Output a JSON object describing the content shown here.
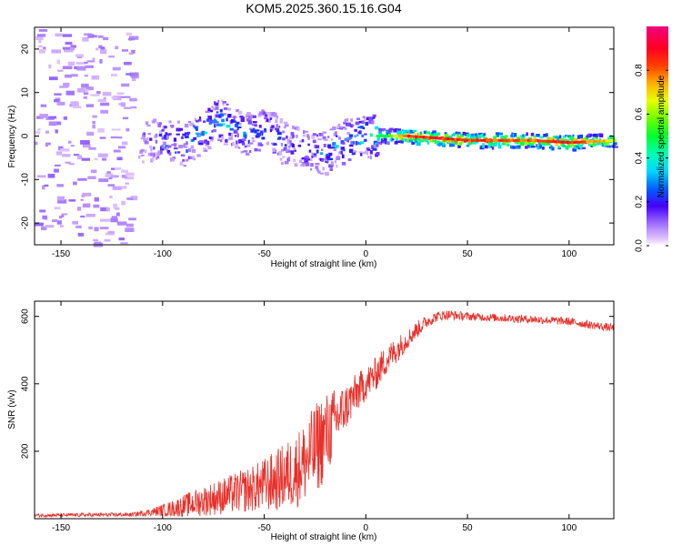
{
  "title": "KOM5.2025.360.15.16.G04",
  "chart_data": [
    {
      "type": "heatmap",
      "xlabel": "Height of straight line (km)",
      "ylabel": "Frequency (Hz)",
      "xlim": [
        -163,
        122
      ],
      "ylim": [
        -25,
        25
      ],
      "xticks": [
        -150,
        -100,
        -50,
        0,
        50,
        100
      ],
      "yticks": [
        -20,
        -10,
        0,
        10,
        20
      ],
      "colorbar": {
        "label": "Normalized spectral amplitude",
        "range": [
          0,
          1
        ],
        "ticks": [
          0.0,
          0.2,
          0.4,
          0.6,
          0.8
        ],
        "tick_labels": [
          "0.0",
          "0.2",
          "0.4",
          "0.6",
          "0.8"
        ]
      },
      "ridge": {
        "x": [
          -112,
          -100,
          -90,
          -80,
          -75,
          -70,
          -60,
          -50,
          -40,
          -30,
          -20,
          -10,
          0,
          10,
          20,
          50,
          80,
          100,
          122
        ],
        "freq": [
          -1,
          -1,
          -2,
          1,
          4,
          3,
          0,
          2,
          -2,
          -3,
          -4,
          -1,
          0,
          0,
          0,
          -1,
          -1,
          -1.5,
          -1
        ],
        "amplitude": [
          0.15,
          0.3,
          0.3,
          0.35,
          0.4,
          0.35,
          0.3,
          0.3,
          0.25,
          0.25,
          0.3,
          0.35,
          0.45,
          0.55,
          0.95,
          0.9,
          0.85,
          0.95,
          0.7
        ]
      },
      "noise_region": {
        "x_range": [
          -163,
          -115
        ],
        "amplitude": 0.05
      }
    },
    {
      "type": "line",
      "xlabel": "Height of straight line (km)",
      "ylabel": "SNR (v/v)",
      "xlim": [
        -163,
        122
      ],
      "ylim": [
        0,
        645
      ],
      "xticks": [
        -150,
        -100,
        -50,
        0,
        50,
        100
      ],
      "yticks": [
        200,
        400,
        600
      ],
      "color": "#e8302a",
      "envelope": {
        "x": [
          -163,
          -115,
          -105,
          -95,
          -85,
          -75,
          -65,
          -55,
          -45,
          -35,
          -28,
          -22,
          -18,
          -14,
          -10,
          -5,
          0,
          5,
          10,
          15,
          20,
          25,
          30,
          35,
          40,
          50,
          60,
          80,
          100,
          110,
          122
        ],
        "mean": [
          10,
          12,
          20,
          30,
          45,
          60,
          75,
          90,
          110,
          140,
          180,
          230,
          260,
          300,
          330,
          370,
          400,
          430,
          470,
          500,
          530,
          560,
          585,
          600,
          605,
          600,
          597,
          592,
          585,
          575,
          565
        ],
        "amplitude": [
          5,
          6,
          12,
          25,
          40,
          50,
          60,
          70,
          90,
          110,
          130,
          140,
          120,
          90,
          70,
          60,
          50,
          50,
          45,
          40,
          30,
          25,
          20,
          15,
          15,
          12,
          12,
          12,
          12,
          12,
          12
        ]
      }
    }
  ]
}
